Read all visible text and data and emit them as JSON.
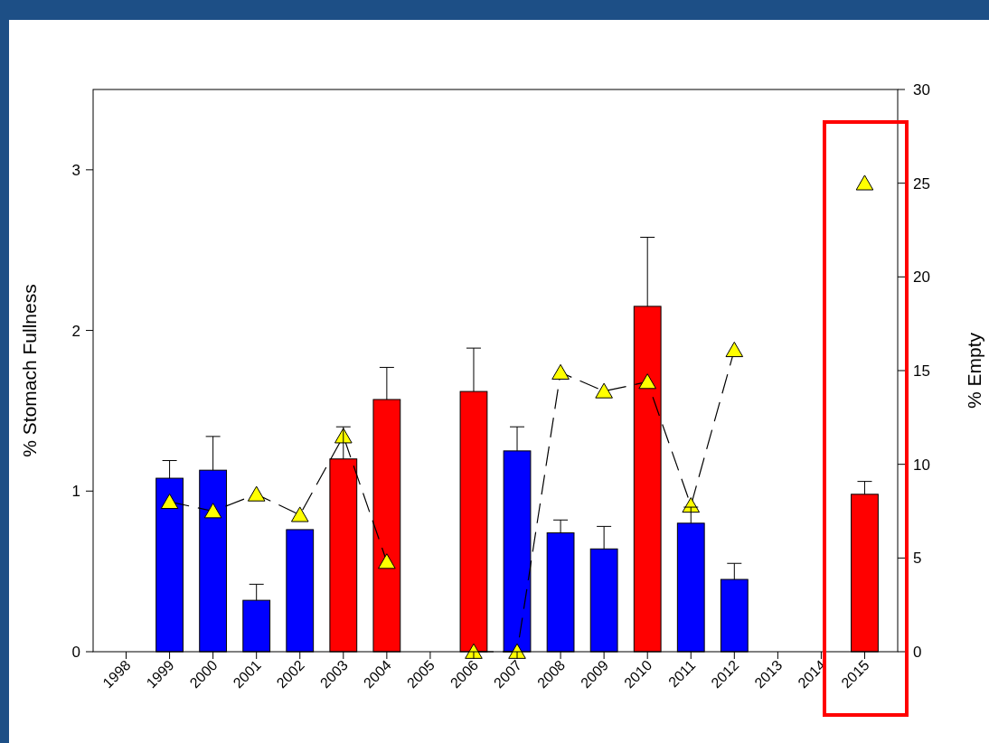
{
  "chart_data": {
    "type": "bar",
    "ylabel": "% Stomach Fullness",
    "y2label": "% Empty",
    "categories": [
      "1998",
      "1999",
      "2000",
      "2001",
      "2002",
      "2003",
      "2004",
      "2005",
      "2006",
      "2007",
      "2008",
      "2009",
      "2010",
      "2011",
      "2012",
      "2013",
      "2014",
      "2015"
    ],
    "series": [
      {
        "colors": [
          null,
          "#0000ff",
          "#0000ff",
          "#0000ff",
          "#0000ff",
          "#ff0000",
          "#ff0000",
          null,
          "#ff0000",
          "#0000ff",
          "#0000ff",
          "#0000ff",
          "#ff0000",
          "#0000ff",
          "#0000ff",
          null,
          null,
          "#ff0000"
        ],
        "values": [
          null,
          1.08,
          1.13,
          0.32,
          0.76,
          1.2,
          1.57,
          null,
          1.62,
          1.25,
          0.74,
          0.64,
          2.15,
          0.8,
          0.45,
          null,
          null,
          0.98
        ],
        "errors": [
          null,
          [
            1.08,
            1.19
          ],
          [
            1.13,
            1.34
          ],
          [
            0.32,
            0.42
          ],
          null,
          [
            1.2,
            1.4
          ],
          [
            1.57,
            1.77
          ],
          null,
          [
            1.62,
            1.89
          ],
          [
            1.25,
            1.4
          ],
          [
            0.74,
            0.82
          ],
          [
            0.64,
            0.78
          ],
          [
            2.15,
            2.58
          ],
          [
            0.8,
            0.9
          ],
          [
            0.45,
            0.55
          ],
          null,
          null,
          [
            0.98,
            1.06
          ]
        ]
      },
      {
        "type": "line",
        "axis": "y2",
        "color": "#ffff00",
        "marker": "triangle",
        "line_style": "dashed",
        "values": [
          null,
          8,
          7.5,
          8.4,
          7.3,
          11.5,
          4.8,
          null,
          0,
          0,
          14.9,
          13.9,
          14.4,
          7.8,
          16.1,
          null,
          null,
          25
        ]
      }
    ],
    "ylim": [
      0,
      3.5
    ],
    "yticks": [
      0,
      1,
      2,
      3
    ],
    "y2lim": [
      0,
      30
    ],
    "y2ticks": [
      0,
      5,
      10,
      15,
      20,
      25,
      30
    ],
    "grid": false
  }
}
